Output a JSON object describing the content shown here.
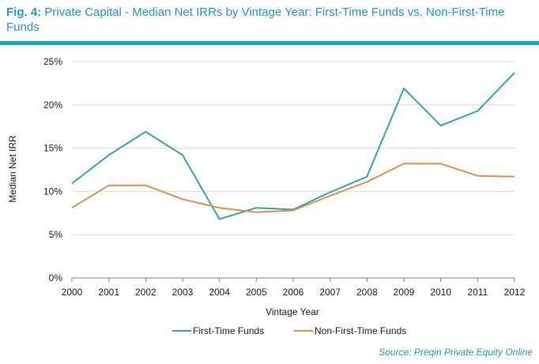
{
  "title": {
    "fig_label": "Fig. 4:",
    "text": "Private Capital - Median Net IRRs by Vintage Year: First-Time Funds vs. Non-First-Time Funds"
  },
  "chart_data": {
    "type": "line",
    "title": "Fig. 4: Private Capital - Median Net IRRs by Vintage Year: First-Time Funds vs. Non-First-Time Funds",
    "xlabel": "Vintage Year",
    "ylabel": "Median Net IRR",
    "categories": [
      "2000",
      "2001",
      "2002",
      "2003",
      "2004",
      "2005",
      "2006",
      "2007",
      "2008",
      "2009",
      "2010",
      "2011",
      "2012"
    ],
    "y_ticks": [
      "0%",
      "5%",
      "10%",
      "15%",
      "20%",
      "25%"
    ],
    "y_tick_values": [
      0,
      5,
      10,
      15,
      20,
      25
    ],
    "ylim": [
      0,
      25
    ],
    "grid": true,
    "legend_position": "bottom-center",
    "series": [
      {
        "name": "First-Time Funds",
        "color": "#2aa7b8",
        "values": [
          10.9,
          14.2,
          16.9,
          14.2,
          6.8,
          8.1,
          7.9,
          9.9,
          11.7,
          21.9,
          17.6,
          19.3,
          23.7
        ]
      },
      {
        "name": "Non-First-Time Funds",
        "color": "#e98c4a",
        "values": [
          8.1,
          10.7,
          10.7,
          9.1,
          8.1,
          7.6,
          7.8,
          9.5,
          11.1,
          13.2,
          13.2,
          11.8,
          11.7
        ]
      }
    ]
  },
  "source": "Source: Preqin Private Equity Online",
  "colors": {
    "title": "#1d9cbf",
    "rule": "#1aa2c9",
    "grid": "#d9d9d9",
    "axis": "#7f7f7f"
  }
}
